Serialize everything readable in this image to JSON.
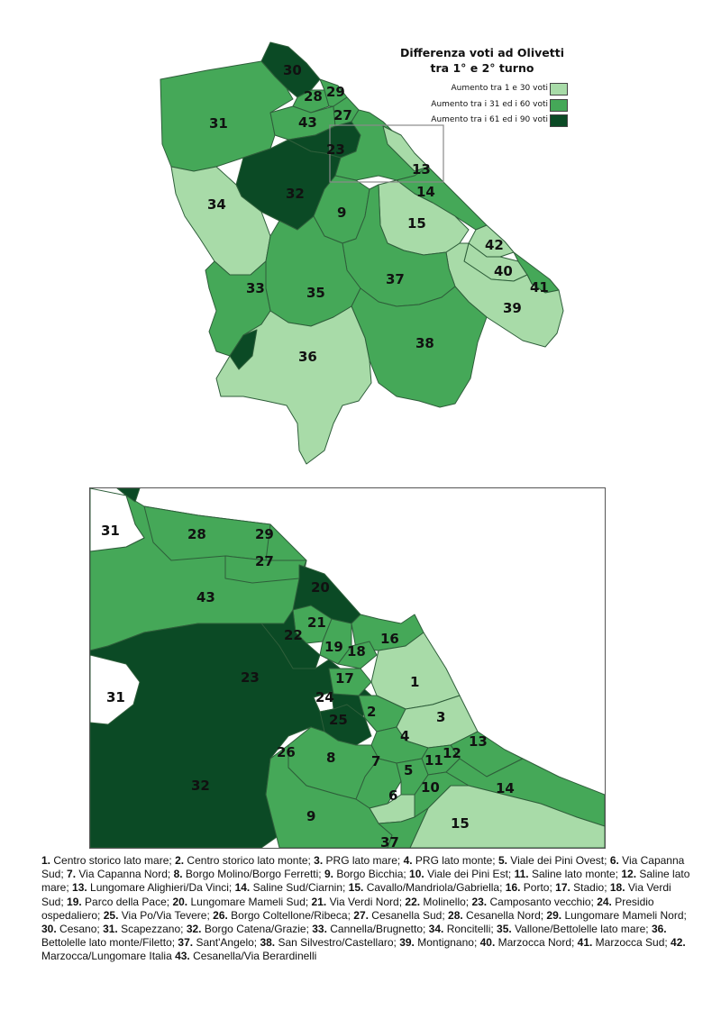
{
  "legend": {
    "title_line1": "Differenza voti ad Olivetti",
    "title_line2": "tra 1° e 2° turno",
    "classes": [
      {
        "label": "Aumento tra 1 e  30 voti",
        "color": "#a8dba8"
      },
      {
        "label": "Aumento tra i 31 ed i 60 voti",
        "color": "#45a858"
      },
      {
        "label": "Aumento tra i 61 ed i 90 voti",
        "color": "#0b4a25"
      }
    ]
  },
  "colors": {
    "light": "#a8dba8",
    "mid": "#45a858",
    "dark": "#0b4a25",
    "border": "#2e5e3a"
  },
  "main_map_labels": {
    "z30": "30",
    "z28": "28",
    "z29": "29",
    "z31": "31",
    "z43": "43",
    "z27": "27",
    "z23": "23",
    "z13": "13",
    "z32": "32",
    "z14": "14",
    "z34": "34",
    "z9": "9",
    "z15": "15",
    "z42": "42",
    "z40": "40",
    "z41": "41",
    "z37": "37",
    "z33": "33",
    "z35": "35",
    "z39": "39",
    "z38": "38",
    "z36": "36"
  },
  "inset_labels": {
    "z31a": "31",
    "z28": "28",
    "z29": "29",
    "z27": "27",
    "z43": "43",
    "z20": "20",
    "z21": "21",
    "z22": "22",
    "z19": "19",
    "z18": "18",
    "z16": "16",
    "z17": "17",
    "z23": "23",
    "z31b": "31",
    "z24": "24",
    "z1": "1",
    "z25": "25",
    "z2": "2",
    "z3": "3",
    "z4": "4",
    "z13": "13",
    "z11": "11",
    "z12": "12",
    "z26": "26",
    "z8": "8",
    "z7": "7",
    "z5": "5",
    "z32": "32",
    "z10": "10",
    "z6": "6",
    "z14": "14",
    "z9": "9",
    "z15": "15",
    "z37": "37"
  },
  "caption": [
    {
      "num": "1.",
      "name": " Centro storico lato mare; "
    },
    {
      "num": "2.",
      "name": " Centro storico lato monte; "
    },
    {
      "num": "3.",
      "name": " PRG lato mare; "
    },
    {
      "num": "4.",
      "name": " PRG lato monte; "
    },
    {
      "num": "5.",
      "name": " Viale dei Pini Ovest; "
    },
    {
      "num": "6.",
      "name": " Via Capanna Sud; "
    },
    {
      "num": "7.",
      "name": " Via Capanna Nord; "
    },
    {
      "num": "8.",
      "name": " Borgo Molino/Borgo Ferretti; "
    },
    {
      "num": "9.",
      "name": " Borgo Bicchia; "
    },
    {
      "num": "10.",
      "name": " Viale dei Pini Est; "
    },
    {
      "num": "11.",
      "name": " Saline lato monte; "
    },
    {
      "num": "12.",
      "name": " Saline lato mare; "
    },
    {
      "num": "13.",
      "name": " Lungomare Alighieri/Da Vinci; "
    },
    {
      "num": "14.",
      "name": " Saline Sud/Ciarnin; "
    },
    {
      "num": "15.",
      "name": " Cavallo/Mandriola/Gabriella; "
    },
    {
      "num": "16.",
      "name": " Porto; "
    },
    {
      "num": "17.",
      "name": " Stadio; "
    },
    {
      "num": "18.",
      "name": " Via Verdi Sud; "
    },
    {
      "num": "19.",
      "name": " Parco della Pace; "
    },
    {
      "num": "20.",
      "name": " Lungomare Mameli Sud; "
    },
    {
      "num": "21.",
      "name": " Via Verdi Nord; "
    },
    {
      "num": "22.",
      "name": " Molinello; "
    },
    {
      "num": "23.",
      "name": " Camposanto vecchio; "
    },
    {
      "num": "24.",
      "name": " Presidio ospedaliero; "
    },
    {
      "num": "25.",
      "name": " Via Po/Via Tevere; "
    },
    {
      "num": "26.",
      "name": " Borgo Coltellone/Ribeca; "
    },
    {
      "num": "27.",
      "name": " Cesanella Sud; "
    },
    {
      "num": "28.",
      "name": " Cesanella Nord; "
    },
    {
      "num": "29.",
      "name": " Lungomare Mameli Nord; "
    },
    {
      "num": "30.",
      "name": " Cesano; "
    },
    {
      "num": "31.",
      "name": " Scapezzano; "
    },
    {
      "num": "32.",
      "name": " Borgo Catena/Grazie; "
    },
    {
      "num": "33.",
      "name": " Cannella/Brugnetto; "
    },
    {
      "num": "34.",
      "name": " Roncitelli; "
    },
    {
      "num": "35.",
      "name": " Vallone/Bettolelle lato mare; "
    },
    {
      "num": "36.",
      "name": " Bettolelle lato monte/Filetto; "
    },
    {
      "num": "37.",
      "name": " Sant'Angelo; "
    },
    {
      "num": "38.",
      "name": " San Silvestro/Castellaro; "
    },
    {
      "num": "39.",
      "name": " Montignano; "
    },
    {
      "num": "40.",
      "name": " Marzocca Nord; "
    },
    {
      "num": "41.",
      "name": " Marzocca Sud; "
    },
    {
      "num": "42.",
      "name": " Marzocca/Lungomare Italia "
    },
    {
      "num": "43.",
      "name": " Cesanella/Via Berardinelli"
    }
  ]
}
